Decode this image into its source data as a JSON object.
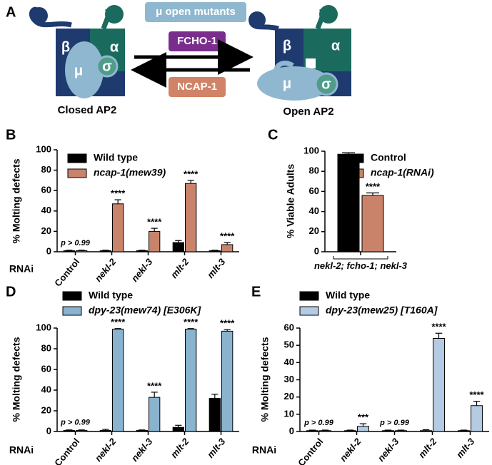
{
  "diagram": {
    "panel_label": "A",
    "mutants_label": "μ open mutants",
    "forward_label": "FCHO-1",
    "reverse_label": "NCAP-1",
    "closed": {
      "title": "Closed AP2",
      "beta": "β",
      "alpha": "α",
      "mu": "μ",
      "sigma": "σ"
    },
    "open": {
      "title": "Open AP2",
      "beta": "β",
      "alpha": "α",
      "mu": "μ",
      "sigma": "σ"
    }
  },
  "chart_data": [
    {
      "type": "bar",
      "panel_label": "B",
      "ylabel": "% Molting defects",
      "xlabel": "RNAi",
      "categories": [
        "Control",
        "nekl-2",
        "nekl-3",
        "mlt-2",
        "mlt-3"
      ],
      "series": [
        {
          "name": "Wild type",
          "color": "#000000",
          "values": [
            1,
            1,
            1,
            9,
            1
          ],
          "errors": [
            0.5,
            0.5,
            0.5,
            2,
            0.5
          ]
        },
        {
          "name": "ncap-1(mew39)",
          "color": "#c8836a",
          "values": [
            1,
            47,
            20,
            67,
            7
          ],
          "errors": [
            0.5,
            4,
            3,
            3,
            2
          ]
        }
      ],
      "annotations": [
        "p > 0.99",
        "****",
        "****",
        "****",
        "****"
      ],
      "ylim": [
        0,
        100
      ],
      "yticks": [
        0,
        20,
        40,
        60,
        80,
        100
      ]
    },
    {
      "type": "bar",
      "panel_label": "C",
      "ylabel": "% Viable Adults",
      "categories": [
        "nekl-2; fcho-1; nekl-3"
      ],
      "series": [
        {
          "name": "Control",
          "color": "#000000",
          "values": [
            97
          ],
          "errors": [
            1.5
          ]
        },
        {
          "name": "ncap-1(RNAi)",
          "color": "#c8836a",
          "values": [
            56
          ],
          "errors": [
            2.5
          ]
        }
      ],
      "annotations": [
        "****"
      ],
      "ylim": [
        0,
        100
      ],
      "yticks": [
        0,
        20,
        40,
        60,
        80,
        100
      ]
    },
    {
      "type": "bar",
      "panel_label": "D",
      "ylabel": "% Molting defects",
      "xlabel": "RNAi",
      "categories": [
        "Control",
        "nekl-2",
        "nekl-3",
        "mlt-2",
        "mlt-3"
      ],
      "series": [
        {
          "name": "Wild type",
          "color": "#000000",
          "values": [
            1,
            1,
            1,
            4,
            32
          ],
          "errors": [
            0.5,
            1,
            0.5,
            2,
            4
          ]
        },
        {
          "name": "dpy-23(mew74) [E306K]",
          "color": "#89b3cf",
          "values": [
            1,
            99,
            33,
            99,
            97
          ],
          "errors": [
            0.5,
            0.5,
            5,
            0.5,
            1.5
          ]
        }
      ],
      "annotations": [
        "p > 0.99",
        "****",
        "****",
        "****",
        "****"
      ],
      "ylim": [
        0,
        100
      ],
      "yticks": [
        0,
        20,
        40,
        60,
        80,
        100
      ]
    },
    {
      "type": "bar",
      "panel_label": "E",
      "ylabel": "% Molting defects",
      "xlabel": "RNAi",
      "categories": [
        "Control",
        "nekl-2",
        "nekl-3",
        "mlt-2",
        "mlt-3"
      ],
      "series": [
        {
          "name": "Wild type",
          "color": "#000000",
          "values": [
            0.5,
            0.5,
            0.5,
            0.5,
            0.5
          ],
          "errors": [
            0.3,
            0.3,
            0.3,
            0.5,
            0.3
          ]
        },
        {
          "name": "dpy-23(mew25) [T160A]",
          "color": "#b5cbe3",
          "values": [
            0.5,
            3,
            0.5,
            54,
            15
          ],
          "errors": [
            0.3,
            1.5,
            0.3,
            3,
            2.5
          ]
        }
      ],
      "annotations": [
        "p > 0.99",
        "***",
        "p > 0.99",
        "****",
        "****"
      ],
      "ylim": [
        0,
        60
      ],
      "yticks": [
        0,
        10,
        20,
        30,
        40,
        50,
        60
      ]
    }
  ]
}
